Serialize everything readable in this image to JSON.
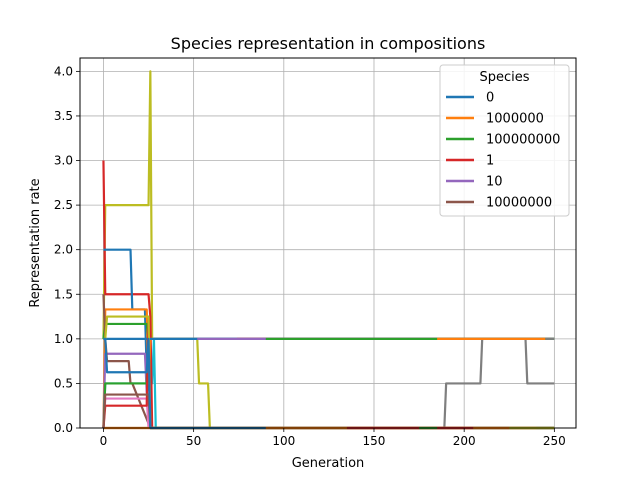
{
  "chart_data": {
    "type": "line",
    "title": "Species representation in compositions",
    "xlabel": "Generation",
    "ylabel": "Representation rate",
    "xlim": [
      -13,
      262
    ],
    "ylim": [
      0,
      4.15
    ],
    "xticks": [
      0,
      50,
      100,
      150,
      200,
      250
    ],
    "xtick_labels": [
      "0",
      "50",
      "100",
      "150",
      "200",
      "250"
    ],
    "yticks": [
      0,
      0.5,
      1.0,
      1.5,
      2.0,
      2.5,
      3.0,
      3.5,
      4.0
    ],
    "ytick_labels": [
      "0.0",
      "0.5",
      "1.0",
      "1.5",
      "2.0",
      "2.5",
      "3.0",
      "3.5",
      "4.0"
    ],
    "grid": true,
    "legend": {
      "title": "Species",
      "placement": "top-right",
      "entries": [
        {
          "name": "0",
          "color": "#1f77b4"
        },
        {
          "name": "1000000",
          "color": "#ff7f0e"
        },
        {
          "name": "100000000",
          "color": "#2ca02c"
        },
        {
          "name": "1",
          "color": "#d62728"
        },
        {
          "name": "10",
          "color": "#9467bd"
        },
        {
          "name": "10000000",
          "color": "#8c564b"
        }
      ]
    },
    "series": [
      {
        "color": "#bcbd22",
        "x": [
          0,
          1,
          2,
          25,
          26,
          27,
          28,
          52,
          53,
          58,
          59,
          250
        ],
        "y": [
          1,
          2.5,
          2.5,
          2.5,
          4,
          1,
          1,
          1,
          0.5,
          0.5,
          0,
          0
        ]
      },
      {
        "color": "#7f7f7f",
        "x": [
          0,
          189,
          190,
          209,
          210,
          234,
          235,
          250
        ],
        "y": [
          0,
          0,
          0.5,
          0.5,
          1,
          1,
          0.5,
          0.5
        ]
      },
      {
        "color": "#17becf",
        "x": [
          0,
          1,
          2,
          27,
          28,
          29,
          250
        ],
        "y": [
          0,
          0.5,
          0.5,
          0.5,
          1,
          0,
          0
        ]
      },
      {
        "color": "#d62728",
        "x": [
          0,
          1,
          2,
          25,
          26,
          27,
          250
        ],
        "y": [
          3,
          1.5,
          1.5,
          1.5,
          1.25,
          0,
          0
        ]
      },
      {
        "color": "#1f77b4",
        "x": [
          0,
          1,
          15,
          16,
          23,
          24,
          25,
          26,
          250
        ],
        "y": [
          2,
          2,
          2,
          1.33,
          1.33,
          0.625,
          0.625,
          0,
          0
        ]
      },
      {
        "color": "#ff7f0e",
        "x": [
          0,
          1,
          2,
          3,
          24,
          25,
          26,
          100,
          250
        ],
        "y": [
          0,
          1.33,
          1.33,
          1.33,
          1.33,
          0.5,
          1,
          1,
          1
        ]
      },
      {
        "color": "#2ca02c",
        "x": [
          0,
          1,
          2,
          24,
          25,
          26,
          250
        ],
        "y": [
          1,
          1.167,
          1.167,
          1.167,
          1,
          0,
          0
        ]
      },
      {
        "color": "#9467bd",
        "x": [
          0,
          1,
          2,
          23,
          24,
          25,
          26,
          250
        ],
        "y": [
          0,
          0.833,
          0.833,
          0.833,
          0.4,
          0.4,
          0,
          0
        ]
      },
      {
        "color": "#8c564b",
        "x": [
          0,
          1,
          2,
          14,
          15,
          16,
          26,
          250
        ],
        "y": [
          1.5,
          1,
          0.75,
          0.75,
          0.5,
          0.5,
          0,
          0
        ]
      },
      {
        "color": "#e377c2",
        "x": [
          0,
          1,
          2,
          24,
          25,
          250
        ],
        "y": [
          0,
          0.33,
          0.33,
          0.33,
          0,
          0
        ]
      },
      {
        "color": "#1f77b4",
        "x": [
          0,
          1,
          250
        ],
        "y": [
          1,
          1,
          1
        ]
      },
      {
        "color": "#ff7f0e",
        "x": [
          0,
          1,
          250
        ],
        "y": [
          0,
          0,
          0
        ]
      },
      {
        "color": "#2ca02c",
        "x": [
          0,
          1,
          2,
          24,
          25,
          26,
          250
        ],
        "y": [
          0,
          0.5,
          0.5,
          0.5,
          1,
          0,
          0
        ]
      },
      {
        "color": "#d62728",
        "x": [
          0,
          1,
          2,
          24,
          25,
          26,
          250
        ],
        "y": [
          0,
          0.25,
          0.25,
          0.25,
          1.25,
          0,
          0
        ]
      },
      {
        "color": "#bcbd22",
        "x": [
          0,
          1,
          2,
          24,
          25,
          26,
          250
        ],
        "y": [
          1,
          1,
          1.25,
          1.25,
          1.25,
          0,
          0
        ]
      },
      {
        "color": "#8c564b",
        "x": [
          0,
          1,
          2,
          25,
          26,
          250
        ],
        "y": [
          0,
          0.375,
          0.375,
          0.375,
          0,
          0
        ]
      },
      {
        "color": "#1f77b4",
        "x": [
          0,
          1,
          2,
          24,
          25,
          26,
          250
        ],
        "y": [
          1,
          1,
          0.625,
          0.625,
          1,
          0,
          0
        ]
      },
      {
        "color": "#1f77b4",
        "x": [
          28,
          50,
          100,
          250
        ],
        "y": [
          1,
          1,
          1,
          1
        ]
      },
      {
        "color": "#d62728",
        "x": [
          74,
          80,
          80.5,
          150,
          155,
          155.5,
          250
        ],
        "y": [
          1,
          1,
          1,
          1,
          1,
          1,
          1
        ]
      },
      {
        "color": "#9467bd",
        "x": [
          52,
          70,
          90,
          250
        ],
        "y": [
          1,
          1,
          1,
          1
        ]
      },
      {
        "color": "#2ca02c",
        "x": [
          90,
          135,
          160,
          185,
          250
        ],
        "y": [
          1,
          1,
          1,
          1,
          1
        ]
      },
      {
        "color": "#ff7f0e",
        "x": [
          185,
          210,
          245
        ],
        "y": [
          1,
          1,
          1
        ]
      },
      {
        "color": "#7f7f7f",
        "x": [
          245,
          250
        ],
        "y": [
          1,
          1
        ]
      },
      {
        "color": "#ff7f0e",
        "x": [
          90,
          110,
          150,
          175,
          205,
          240
        ],
        "y": [
          0,
          0,
          0,
          0,
          0,
          0
        ]
      },
      {
        "color": "#d62728",
        "x": [
          135,
          165,
          180,
          205
        ],
        "y": [
          0,
          0,
          0,
          0
        ]
      },
      {
        "color": "#2ca02c",
        "x": [
          175,
          185
        ],
        "y": [
          0,
          0
        ]
      },
      {
        "color": "#bcbd22",
        "x": [
          225,
          250
        ],
        "y": [
          0,
          0
        ]
      }
    ]
  }
}
